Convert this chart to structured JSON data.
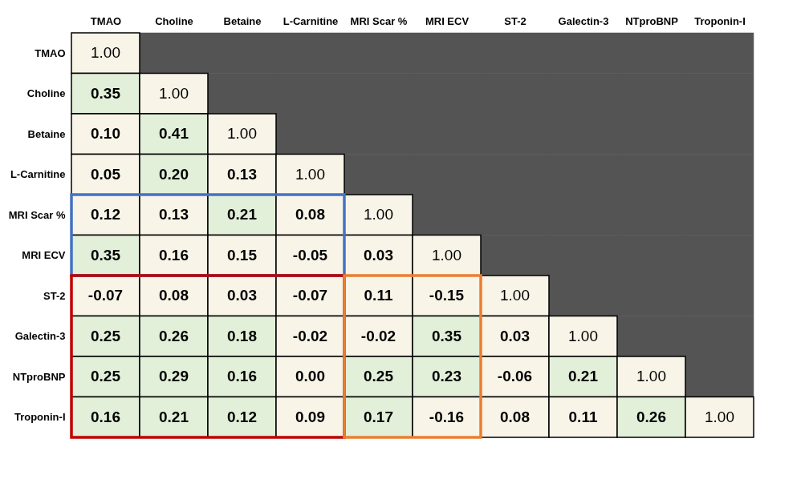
{
  "chart_data": {
    "type": "heatmap",
    "categories": [
      "TMAO",
      "Choline",
      "Betaine",
      "L-Carnitine",
      "MRI Scar %",
      "MRI ECV",
      "ST-2",
      "Galectin-3",
      "NTproBNP",
      "Troponin-I"
    ],
    "y_categories": [
      "TMAO",
      "Choline",
      "Betaine",
      "L-Carnitine",
      "MRI Scar %",
      "MRI ECV",
      "ST-2",
      "Galectin-3",
      "NTproBNP",
      "Troponin-I"
    ],
    "cells": [
      [
        1.0,
        null,
        null,
        null,
        null,
        null,
        null,
        null,
        null,
        null
      ],
      [
        0.35,
        1.0,
        null,
        null,
        null,
        null,
        null,
        null,
        null,
        null
      ],
      [
        0.1,
        0.41,
        1.0,
        null,
        null,
        null,
        null,
        null,
        null,
        null
      ],
      [
        0.05,
        0.2,
        0.13,
        1.0,
        null,
        null,
        null,
        null,
        null,
        null
      ],
      [
        0.12,
        0.13,
        0.21,
        0.08,
        1.0,
        null,
        null,
        null,
        null,
        null
      ],
      [
        0.35,
        0.16,
        0.15,
        -0.05,
        0.03,
        1.0,
        null,
        null,
        null,
        null
      ],
      [
        -0.07,
        0.08,
        0.03,
        -0.07,
        0.11,
        -0.15,
        1.0,
        null,
        null,
        null
      ],
      [
        0.25,
        0.26,
        0.18,
        -0.02,
        -0.02,
        0.35,
        0.03,
        1.0,
        null,
        null
      ],
      [
        0.25,
        0.29,
        0.16,
        0.0,
        0.25,
        0.23,
        -0.06,
        0.21,
        1.0,
        null
      ],
      [
        0.16,
        0.21,
        0.12,
        0.09,
        0.17,
        -0.16,
        0.08,
        0.11,
        0.26,
        1.0
      ]
    ],
    "cell_labels": [
      [
        "1.00",
        null,
        null,
        null,
        null,
        null,
        null,
        null,
        null,
        null
      ],
      [
        "0.35",
        "1.00",
        null,
        null,
        null,
        null,
        null,
        null,
        null,
        null
      ],
      [
        "0.10",
        "0.41",
        "1.00",
        null,
        null,
        null,
        null,
        null,
        null,
        null
      ],
      [
        "0.05",
        "0.20",
        "0.13",
        "1.00",
        null,
        null,
        null,
        null,
        null,
        null
      ],
      [
        "0.12",
        "0.13",
        "0.21",
        "0.08",
        "1.00",
        null,
        null,
        null,
        null,
        null
      ],
      [
        "0.35",
        "0.16",
        "0.15",
        "-0.05",
        "0.03",
        "1.00",
        null,
        null,
        null,
        null
      ],
      [
        "-0.07",
        "0.08",
        "0.03",
        "-0.07",
        "0.11",
        "-0.15",
        "1.00",
        null,
        null,
        null
      ],
      [
        "0.25",
        "0.26",
        "0.18",
        "-0.02",
        "-0.02",
        "0.35",
        "0.03",
        "1.00",
        null,
        null
      ],
      [
        "0.25",
        "0.29",
        "0.16",
        "0.00",
        "0.25",
        "0.23",
        "-0.06",
        "0.21",
        "1.00",
        null
      ],
      [
        "0.16",
        "0.21",
        "0.12",
        "0.09",
        "0.17",
        "-0.16",
        "0.08",
        "0.11",
        "0.26",
        "1.00"
      ]
    ],
    "colors": [
      [
        "#f8f4e8",
        "#545454",
        "#545454",
        "#545454",
        "#545454",
        "#545454",
        "#545454",
        "#545454",
        "#545454",
        "#545454"
      ],
      [
        "#e2efd9",
        "#f8f4e8",
        "#545454",
        "#545454",
        "#545454",
        "#545454",
        "#545454",
        "#545454",
        "#545454",
        "#545454"
      ],
      [
        "#f8f4e8",
        "#e2efd9",
        "#f8f4e8",
        "#545454",
        "#545454",
        "#545454",
        "#545454",
        "#545454",
        "#545454",
        "#545454"
      ],
      [
        "#f8f4e8",
        "#e2efd9",
        "#f8f4e8",
        "#f8f4e8",
        "#545454",
        "#545454",
        "#545454",
        "#545454",
        "#545454",
        "#545454"
      ],
      [
        "#f8f4e8",
        "#f8f4e8",
        "#e2efd9",
        "#f8f4e8",
        "#f8f4e8",
        "#545454",
        "#545454",
        "#545454",
        "#545454",
        "#545454"
      ],
      [
        "#e2efd9",
        "#f8f4e8",
        "#f8f4e8",
        "#f8f4e8",
        "#f8f4e8",
        "#f8f4e8",
        "#545454",
        "#545454",
        "#545454",
        "#545454"
      ],
      [
        "#f8f4e8",
        "#f8f4e8",
        "#f8f4e8",
        "#f8f4e8",
        "#f8f4e8",
        "#f8f4e8",
        "#f8f4e8",
        "#545454",
        "#545454",
        "#545454"
      ],
      [
        "#e2efd9",
        "#e2efd9",
        "#e2efd9",
        "#f8f4e8",
        "#f8f4e8",
        "#e2efd9",
        "#f8f4e8",
        "#f8f4e8",
        "#545454",
        "#545454"
      ],
      [
        "#e2efd9",
        "#e2efd9",
        "#e2efd9",
        "#f8f4e8",
        "#e2efd9",
        "#e2efd9",
        "#f8f4e8",
        "#e2efd9",
        "#f8f4e8",
        "#545454"
      ],
      [
        "#e2efd9",
        "#e2efd9",
        "#e2efd9",
        "#f8f4e8",
        "#e2efd9",
        "#f8f4e8",
        "#f8f4e8",
        "#f8f4e8",
        "#e2efd9",
        "#f8f4e8"
      ]
    ]
  }
}
